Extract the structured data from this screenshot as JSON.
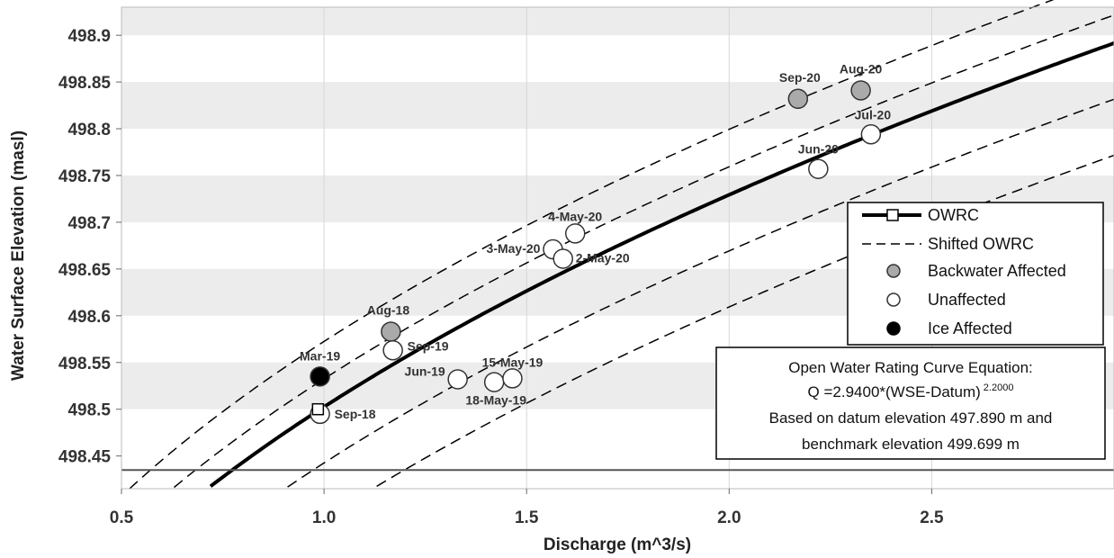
{
  "chart_data": {
    "type": "scatter",
    "xlabel": "Discharge (m^3/s)",
    "ylabel": "Water Surface Elevation (masl)",
    "xlim": [
      0.5,
      2.95
    ],
    "ylim": [
      498.415,
      498.93
    ],
    "x_ticks": [
      {
        "value": 0.5,
        "label": "0.5"
      },
      {
        "value": 1.0,
        "label": "1.0"
      },
      {
        "value": 1.5,
        "label": "1.5"
      },
      {
        "value": 2.0,
        "label": "2.0"
      },
      {
        "value": 2.5,
        "label": "2.5"
      }
    ],
    "y_ticks": [
      {
        "value": 498.45,
        "label": "498.45"
      },
      {
        "value": 498.5,
        "label": "498.5"
      },
      {
        "value": 498.55,
        "label": "498.55"
      },
      {
        "value": 498.6,
        "label": "498.6"
      },
      {
        "value": 498.65,
        "label": "498.65"
      },
      {
        "value": 498.7,
        "label": "498.7"
      },
      {
        "value": 498.75,
        "label": "498.75"
      },
      {
        "value": 498.8,
        "label": "498.8"
      },
      {
        "value": 498.85,
        "label": "498.85"
      },
      {
        "value": 498.9,
        "label": "498.9"
      }
    ],
    "grid": "horizontal alternating bands",
    "rating_curve": {
      "coefficient": 2.94,
      "exponent": 2.2,
      "datum": 497.89
    },
    "shifted_curves_elevation_offsets": [
      -0.12,
      -0.06,
      0.03,
      0.07
    ],
    "reference_line_y": 498.435,
    "points": [
      {
        "label": "Mar-19",
        "x": 0.99,
        "y": 498.535,
        "category": "ice"
      },
      {
        "label": "Sep-18",
        "x": 0.99,
        "y": 498.495,
        "category": "unaffected"
      },
      {
        "label": "Aug-18",
        "x": 1.165,
        "y": 498.583,
        "category": "backwater"
      },
      {
        "label": "Sep-19",
        "x": 1.17,
        "y": 498.563,
        "category": "unaffected"
      },
      {
        "label": "Jun-19",
        "x": 1.33,
        "y": 498.532,
        "category": "unaffected"
      },
      {
        "label": "18-May-19",
        "x": 1.42,
        "y": 498.529,
        "category": "unaffected"
      },
      {
        "label": "15-May-19",
        "x": 1.465,
        "y": 498.533,
        "category": "unaffected"
      },
      {
        "label": "3-May-20",
        "x": 1.565,
        "y": 498.671,
        "category": "unaffected"
      },
      {
        "label": "2-May-20",
        "x": 1.59,
        "y": 498.661,
        "category": "unaffected"
      },
      {
        "label": "4-May-20",
        "x": 1.62,
        "y": 498.688,
        "category": "unaffected"
      },
      {
        "label": "Sep-20",
        "x": 2.17,
        "y": 498.832,
        "category": "backwater"
      },
      {
        "label": "Jun-20",
        "x": 2.22,
        "y": 498.757,
        "category": "unaffected"
      },
      {
        "label": "Aug-20",
        "x": 2.325,
        "y": 498.841,
        "category": "backwater"
      },
      {
        "label": "Jul-20",
        "x": 2.35,
        "y": 498.794,
        "category": "unaffected"
      }
    ],
    "highlight_point": {
      "x": 0.985,
      "y": 498.5
    },
    "legend": {
      "placement": "right",
      "entries": [
        {
          "label": "OWRC",
          "marker": "thick-line-square"
        },
        {
          "label": "Shifted OWRC",
          "marker": "dashed-line"
        },
        {
          "label": "Backwater Affected",
          "marker": "gray-circle"
        },
        {
          "label": "Unaffected",
          "marker": "white-circle"
        },
        {
          "label": "Ice Affected",
          "marker": "black-circle"
        }
      ]
    },
    "equation_box": {
      "line1": "Open Water Rating Curve Equation:",
      "line2_main": "Q =2.9400*(WSE-Datum)",
      "line2_sup": "2.2000",
      "line3": "Based on datum elevation 497.890 m and",
      "line4": "benchmark elevation 499.699 m"
    },
    "colors": {
      "backwater": "#aaaaaa",
      "unaffected": "#ffffff",
      "ice": "#000000",
      "curve": "#000000",
      "band": "#ececec"
    }
  }
}
